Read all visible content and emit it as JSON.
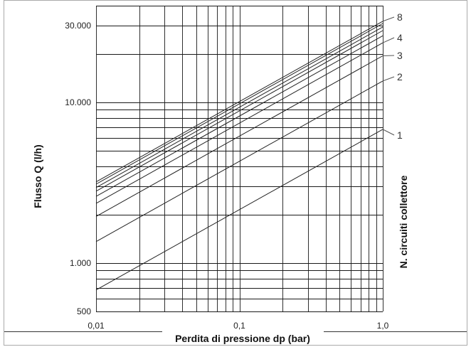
{
  "chart_data": {
    "type": "line",
    "xlabel": "Perdita di pressione dp (bar)",
    "ylabel": "Flusso Q (l/h)",
    "right_label": "N. circuiti collettore",
    "x_scale": "log",
    "y_scale": "log",
    "xlim": [
      0.01,
      1.0
    ],
    "ylim": [
      500,
      40000
    ],
    "x_tick_labels": [
      {
        "value": 0.01,
        "label": "0,01"
      },
      {
        "value": 0.1,
        "label": "0,1"
      },
      {
        "value": 1.0,
        "label": "1,0"
      }
    ],
    "y_tick_labels": [
      {
        "value": 500,
        "label": "500"
      },
      {
        "value": 1000,
        "label": "1.000"
      },
      {
        "value": 10000,
        "label": "10.000"
      },
      {
        "value": 30000,
        "label": "30.000"
      }
    ],
    "grid": true,
    "series": [
      {
        "name": "1",
        "x": [
          0.01,
          1.0
        ],
        "y": [
          680,
          6800
        ]
      },
      {
        "name": "2",
        "x": [
          0.01,
          1.0
        ],
        "y": [
          1360,
          13600
        ]
      },
      {
        "name": "3",
        "x": [
          0.01,
          1.0
        ],
        "y": [
          1950,
          19500
        ]
      },
      {
        "name": "4",
        "x": [
          0.01,
          1.0
        ],
        "y": [
          2350,
          23500
        ]
      },
      {
        "name": "",
        "x": [
          0.01,
          1.0
        ],
        "y": [
          2600,
          26000
        ]
      },
      {
        "name": "",
        "x": [
          0.01,
          1.0
        ],
        "y": [
          2800,
          28000
        ]
      },
      {
        "name": "",
        "x": [
          0.01,
          1.0
        ],
        "y": [
          2950,
          29500
        ]
      },
      {
        "name": "",
        "x": [
          0.01,
          1.0
        ],
        "y": [
          3100,
          31000
        ]
      },
      {
        "name": "8",
        "x": [
          0.01,
          1.0
        ],
        "y": [
          3200,
          32000
        ]
      }
    ]
  }
}
